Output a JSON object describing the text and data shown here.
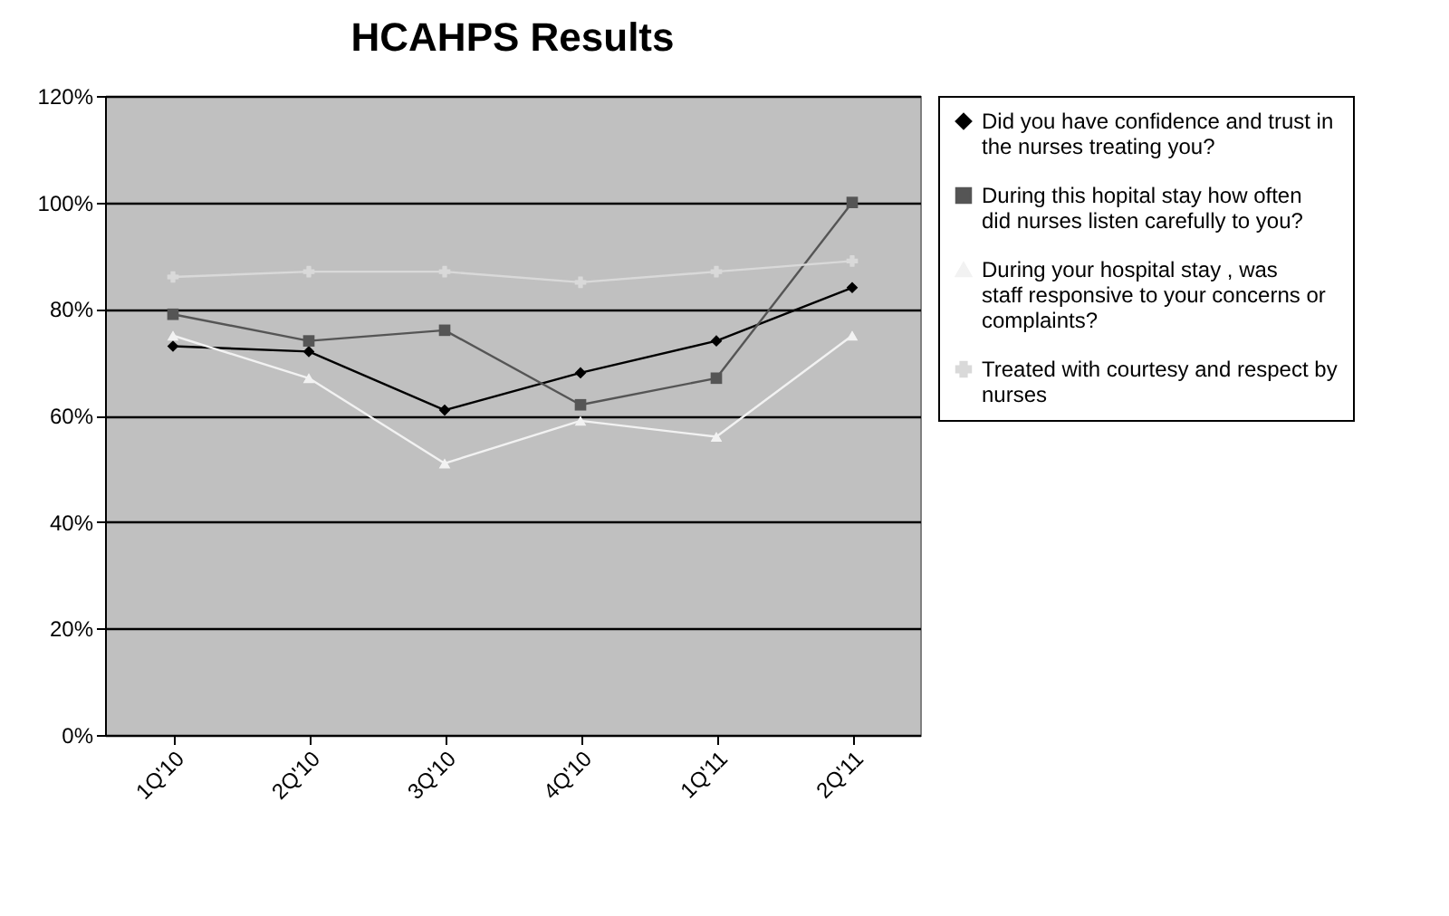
{
  "chart_data": {
    "type": "line",
    "title": "HCAHPS Results",
    "categories": [
      "1Q'10",
      "2Q'10",
      "3Q'10",
      "4Q'10",
      "1Q'11",
      "2Q'11"
    ],
    "series": [
      {
        "name": "Did you have confidence and trust in the nurses treating you?",
        "color": "#000000",
        "marker": "diamond",
        "values": [
          73,
          72,
          61,
          68,
          74,
          84
        ]
      },
      {
        "name": "During this hopital stay how often did nurses listen carefully to you?",
        "color": "#555555",
        "marker": "square",
        "values": [
          79,
          74,
          76,
          62,
          67,
          100
        ]
      },
      {
        "name": "During your hospital stay , was staff responsive to your concerns or complaints?",
        "color": "#f2f2f2",
        "marker": "triangle",
        "values": [
          75,
          67,
          51,
          59,
          56,
          75
        ]
      },
      {
        "name": "Treated with courtesy and respect by nurses",
        "color": "#d9d9d9",
        "marker": "cross",
        "values": [
          86,
          87,
          87,
          85,
          87,
          89
        ]
      }
    ],
    "ylim": [
      0,
      120
    ],
    "yticks": [
      {
        "value": 0,
        "label": "0%"
      },
      {
        "value": 20,
        "label": "20%"
      },
      {
        "value": 40,
        "label": "40%"
      },
      {
        "value": 60,
        "label": "60%"
      },
      {
        "value": 80,
        "label": "80%"
      },
      {
        "value": 100,
        "label": "100%"
      },
      {
        "value": 120,
        "label": "120%"
      }
    ],
    "grid": "y",
    "legend": "right",
    "line_style": "solid"
  }
}
